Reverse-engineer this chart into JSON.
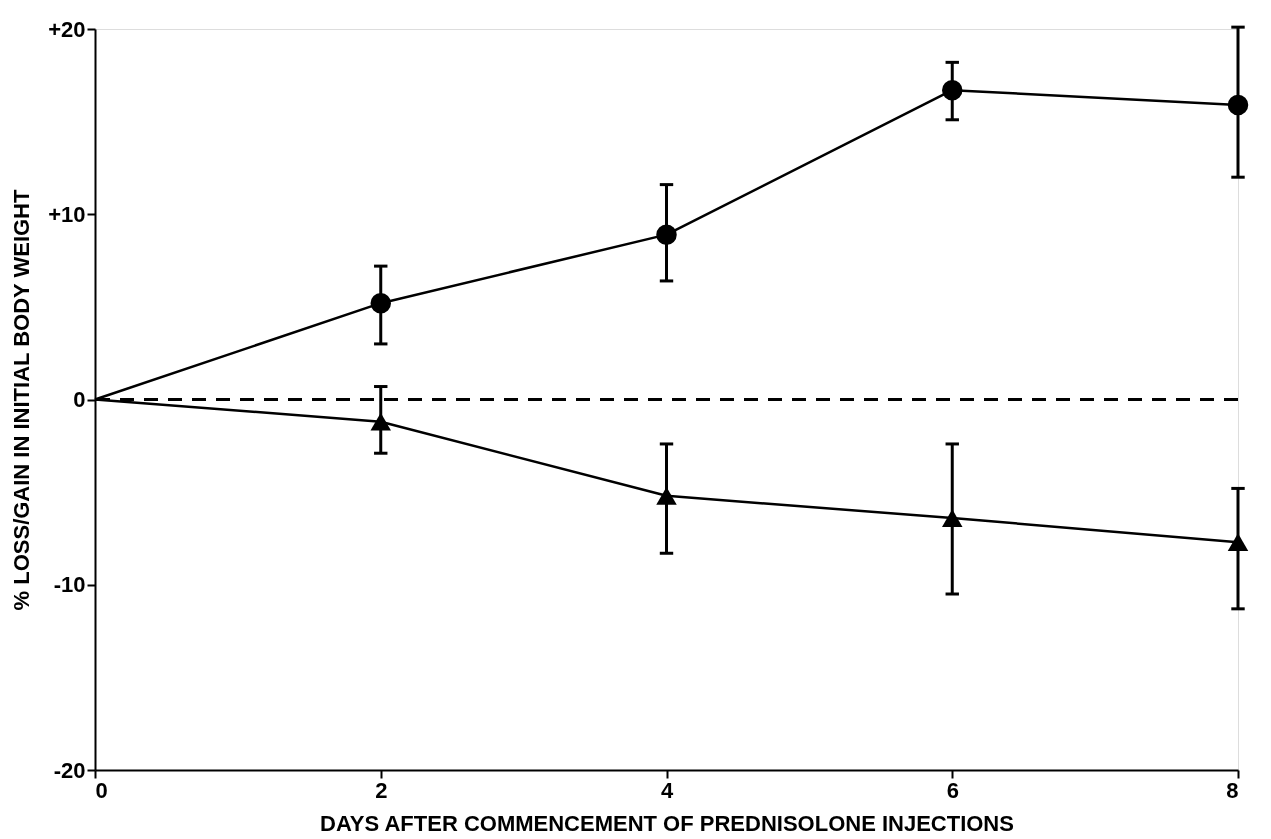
{
  "chart_data": {
    "type": "line",
    "xlabel": "DAYS AFTER COMMENCEMENT OF PREDNISOLONE INJECTIONS",
    "ylabel": "% LOSS/GAIN IN INITIAL BODY WEIGHT",
    "x": [
      0,
      2,
      4,
      6,
      8
    ],
    "xlim": [
      0,
      8
    ],
    "xticks": [
      0,
      2,
      4,
      6,
      8
    ],
    "ylim": [
      -20,
      20
    ],
    "yticks": [
      {
        "value": -20,
        "label": "-20"
      },
      {
        "value": -10,
        "label": "-10"
      },
      {
        "value": 0,
        "label": "0"
      },
      {
        "value": 10,
        "label": "+10"
      },
      {
        "value": 20,
        "label": "+20"
      }
    ],
    "grid": false,
    "line_style": "solid",
    "series": [
      {
        "color": "#000000",
        "marker": "circle",
        "values": [
          0,
          5.2,
          8.9,
          16.7,
          15.9
        ],
        "errors": [
          null,
          [
            3.0,
            7.2
          ],
          [
            6.4,
            11.6
          ],
          [
            15.1,
            18.2
          ],
          [
            12.0,
            20.1
          ]
        ]
      },
      {
        "color": "#000000",
        "marker": "triangle",
        "values": [
          0,
          -1.2,
          -5.2,
          -6.4,
          -7.7
        ],
        "errors": [
          null,
          [
            -2.9,
            0.7
          ],
          [
            -8.3,
            -2.4
          ],
          [
            -10.5,
            -2.4
          ],
          [
            -11.3,
            -4.8
          ]
        ]
      }
    ],
    "ref_lines": [
      {
        "axis": "y",
        "value": 0,
        "line_style": "dashed",
        "color": "#000000"
      }
    ]
  }
}
